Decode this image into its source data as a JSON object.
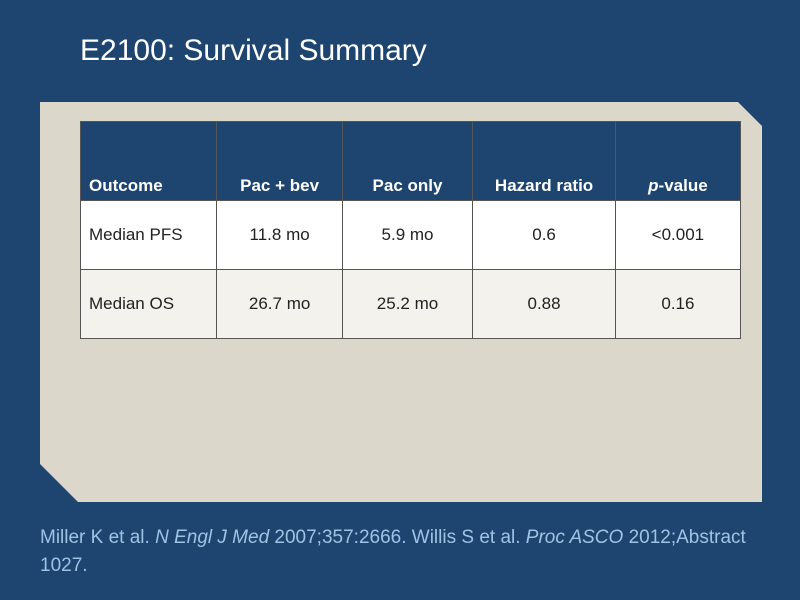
{
  "slide": {
    "title": "E2100: Survival Summary"
  },
  "table": {
    "headers": {
      "outcome": "Outcome",
      "pac_bev": "Pac + bev",
      "pac_only": "Pac only",
      "hazard_ratio": "Hazard ratio",
      "p_value_italic": "p",
      "p_value_rest": "-value"
    },
    "rows": [
      {
        "outcome": "Median PFS",
        "pac_bev": "11.8 mo",
        "pac_only": "5.9 mo",
        "hazard_ratio": "0.6",
        "p_value": "<0.001"
      },
      {
        "outcome": "Median OS",
        "pac_bev": "26.7 mo",
        "pac_only": "25.2 mo",
        "hazard_ratio": "0.88",
        "p_value": "0.16"
      }
    ]
  },
  "reference": {
    "part1": "Miller K et al. ",
    "journal1": "N Engl J Med",
    "part2": " 2007;357:2666. Willis S et al. ",
    "journal2": "Proc ASCO",
    "part3": " 2012;Abstract 1027."
  },
  "colors": {
    "background": "#1d4570",
    "panel": "#dbd7cb",
    "header_fill": "#1d4570",
    "reference_text": "#9ec4e4"
  }
}
